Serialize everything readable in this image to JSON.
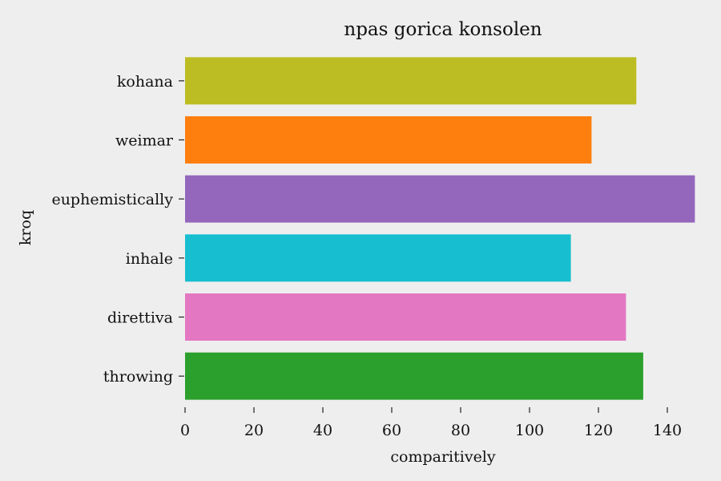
{
  "chart_data": {
    "type": "bar",
    "orientation": "horizontal",
    "title": "npas gorica konsolen",
    "xlabel": "comparitively",
    "ylabel": "kroq",
    "xlim": [
      0,
      150
    ],
    "xticks": [
      0,
      20,
      40,
      60,
      80,
      100,
      120,
      140
    ],
    "grid": false,
    "categories": [
      "kohana",
      "weimar",
      "euphemistically",
      "inhale",
      "direttiva",
      "throwing"
    ],
    "values": [
      131,
      118,
      148,
      112,
      128,
      133
    ],
    "colors": [
      "#bcbd22",
      "#ff7f0e",
      "#9467bd",
      "#17becf",
      "#e377c2",
      "#2ca02c"
    ]
  }
}
